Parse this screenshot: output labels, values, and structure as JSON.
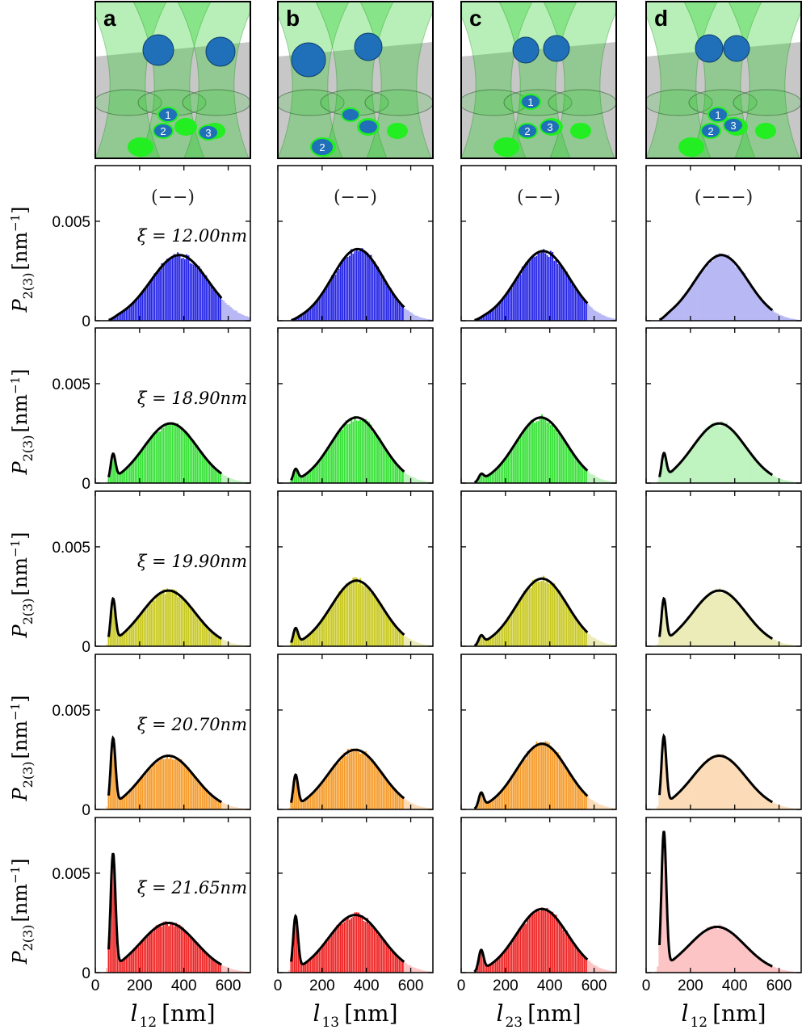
{
  "figure": {
    "panel_letters": [
      "a",
      "b",
      "c",
      "d"
    ],
    "signs": [
      "(−−)",
      "(−−)",
      "(−−)",
      "(−−−)"
    ],
    "ylabel_main": "P",
    "ylabel_sub": "2(3)",
    "ylabel_unit": "[nm",
    "ylabel_unit_sup": "−1",
    "ylabel_unit_close": "]",
    "xlabels": [
      {
        "var": "l",
        "sub": "12",
        "unit": "[nm]"
      },
      {
        "var": "l",
        "sub": "13",
        "unit": "[nm]"
      },
      {
        "var": "l",
        "sub": "23",
        "unit": "[nm]"
      },
      {
        "var": "l",
        "sub": "12",
        "unit": "[nm]"
      }
    ],
    "xi_labels": [
      "ξ = 12.00nm",
      "ξ = 18.90nm",
      "ξ = 19.90nm",
      "ξ = 20.70nm",
      "ξ = 21.65nm"
    ],
    "ytick_labels": [
      "0",
      "0.005"
    ],
    "xtick_labels": [
      "0",
      "200",
      "400",
      "600"
    ],
    "schematic_labels": [
      [
        "1",
        "2",
        "3"
      ],
      [
        "2"
      ],
      [
        "1",
        "2",
        "3"
      ],
      [
        "1",
        "2",
        "3"
      ]
    ],
    "colors": {
      "rows": [
        "#2323e6",
        "#35e135",
        "#c8c81e",
        "#f59a28",
        "#ee2222"
      ],
      "rows_light": [
        "#b8b8f5",
        "#bff3bf",
        "#ececb8",
        "#fcdcb8",
        "#fcc4c4"
      ],
      "beam": "#22cc22",
      "floor": "#c7c7c7",
      "particle": "#1f70b8",
      "spot": "#22ee22"
    }
  },
  "chart_data": {
    "type": "bar",
    "description_of_grid": "5 rows (xi values) x 4 columns (a-d); histograms with fitted curves",
    "xlim": [
      0,
      700
    ],
    "ylim": [
      0,
      0.0078
    ],
    "xticks": [
      0,
      200,
      400,
      600
    ],
    "yticks": [
      0,
      0.005
    ],
    "rows": [
      {
        "xi": 12.0,
        "series": [
          {
            "peak1_pos": 80,
            "peak1_h": 0.0,
            "peak2_pos": 380,
            "peak2_h": 0.0033,
            "peak2_sd": 130
          },
          {
            "peak1_pos": 80,
            "peak1_h": 0.0,
            "peak2_pos": 360,
            "peak2_h": 0.0036,
            "peak2_sd": 115
          },
          {
            "peak1_pos": 80,
            "peak1_h": 0.0,
            "peak2_pos": 370,
            "peak2_h": 0.0035,
            "peak2_sd": 120
          },
          {
            "peak1_pos": 80,
            "peak1_h": 0.0,
            "peak2_pos": 340,
            "peak2_h": 0.0033,
            "peak2_sd": 120
          }
        ]
      },
      {
        "xi": 18.9,
        "series": [
          {
            "peak1_pos": 80,
            "peak1_h": 0.0013,
            "peak2_pos": 340,
            "peak2_h": 0.003,
            "peak2_sd": 120
          },
          {
            "peak1_pos": 80,
            "peak1_h": 0.0006,
            "peak2_pos": 355,
            "peak2_h": 0.0033,
            "peak2_sd": 115
          },
          {
            "peak1_pos": 90,
            "peak1_h": 0.0003,
            "peak2_pos": 360,
            "peak2_h": 0.0033,
            "peak2_sd": 115
          },
          {
            "peak1_pos": 80,
            "peak1_h": 0.0013,
            "peak2_pos": 330,
            "peak2_h": 0.003,
            "peak2_sd": 120
          }
        ]
      },
      {
        "xi": 19.9,
        "series": [
          {
            "peak1_pos": 80,
            "peak1_h": 0.0022,
            "peak2_pos": 330,
            "peak2_h": 0.0028,
            "peak2_sd": 120
          },
          {
            "peak1_pos": 80,
            "peak1_h": 0.0008,
            "peak2_pos": 355,
            "peak2_h": 0.0033,
            "peak2_sd": 115
          },
          {
            "peak1_pos": 90,
            "peak1_h": 0.0004,
            "peak2_pos": 365,
            "peak2_h": 0.0034,
            "peak2_sd": 115
          },
          {
            "peak1_pos": 80,
            "peak1_h": 0.0022,
            "peak2_pos": 330,
            "peak2_h": 0.0028,
            "peak2_sd": 120
          }
        ]
      },
      {
        "xi": 20.7,
        "series": [
          {
            "peak1_pos": 80,
            "peak1_h": 0.0034,
            "peak2_pos": 330,
            "peak2_h": 0.0027,
            "peak2_sd": 120
          },
          {
            "peak1_pos": 80,
            "peak1_h": 0.0016,
            "peak2_pos": 350,
            "peak2_h": 0.003,
            "peak2_sd": 120
          },
          {
            "peak1_pos": 90,
            "peak1_h": 0.0007,
            "peak2_pos": 365,
            "peak2_h": 0.0033,
            "peak2_sd": 115
          },
          {
            "peak1_pos": 80,
            "peak1_h": 0.0035,
            "peak2_pos": 330,
            "peak2_h": 0.0027,
            "peak2_sd": 120
          }
        ]
      },
      {
        "xi": 21.65,
        "series": [
          {
            "peak1_pos": 80,
            "peak1_h": 0.0058,
            "peak2_pos": 330,
            "peak2_h": 0.0025,
            "peak2_sd": 125
          },
          {
            "peak1_pos": 80,
            "peak1_h": 0.0027,
            "peak2_pos": 350,
            "peak2_h": 0.0029,
            "peak2_sd": 120
          },
          {
            "peak1_pos": 90,
            "peak1_h": 0.001,
            "peak2_pos": 365,
            "peak2_h": 0.0032,
            "peak2_sd": 115
          },
          {
            "peak1_pos": 80,
            "peak1_h": 0.0069,
            "peak2_pos": 320,
            "peak2_h": 0.0023,
            "peak2_sd": 125
          }
        ]
      }
    ],
    "fit_range": [
      60,
      570
    ],
    "hist_dark_range": [
      60,
      570
    ],
    "col_d_histogram_light_only": true
  }
}
